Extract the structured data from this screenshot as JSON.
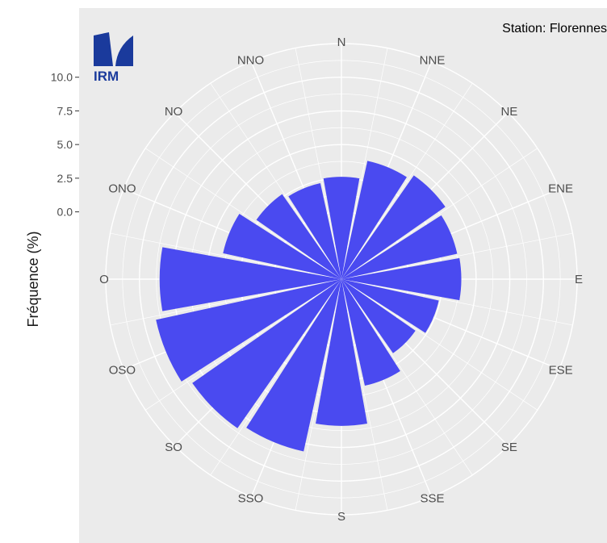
{
  "station": "Station: Florennes",
  "logo": {
    "text": "IRM",
    "color": "#1a3a9c"
  },
  "colors": {
    "panel": "#ebebeb",
    "grid": "#ffffff",
    "bar": "#4a4af0",
    "text": "#4d4d4d"
  },
  "chart_data": {
    "type": "bar",
    "coord": "polar",
    "title": "",
    "xlabel": "",
    "ylabel": "Fréquence (%)",
    "ylim": [
      -5,
      12.5
    ],
    "yticks": [
      0.0,
      2.5,
      5.0,
      7.5,
      10.0
    ],
    "ytick_labels": [
      "0.0",
      "2.5",
      "5.0",
      "7.5",
      "10.0"
    ],
    "grid": true,
    "categories": [
      "N",
      "NNE",
      "NE",
      "ENE",
      "E",
      "ESE",
      "SE",
      "SSE",
      "S",
      "SSO",
      "SO",
      "OSO",
      "O",
      "ONO",
      "NO",
      "NNO"
    ],
    "series": [
      {
        "values": [
          2.6,
          4.0,
          4.4,
          3.8,
          3.9,
          2.4,
          1.7,
          3.1,
          5.9,
          8.1,
          8.5,
          9.1,
          8.5,
          4.0,
          2.7,
          2.3
        ]
      }
    ]
  }
}
